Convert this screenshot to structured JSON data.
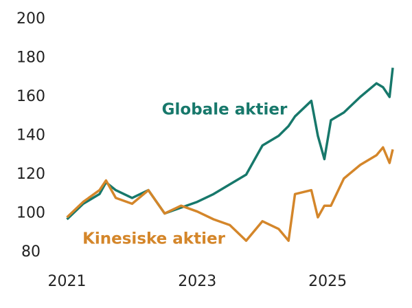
{
  "chart_data": {
    "type": "line",
    "x": [
      2021.0,
      2021.25,
      2021.5,
      2021.6,
      2021.75,
      2022.0,
      2022.25,
      2022.5,
      2022.75,
      2023.0,
      2023.25,
      2023.5,
      2023.75,
      2024.0,
      2024.25,
      2024.4,
      2024.5,
      2024.75,
      2024.85,
      2024.95,
      2025.05,
      2025.25,
      2025.5,
      2025.75,
      2025.85,
      2025.95,
      2026.0
    ],
    "series": [
      {
        "name": "Globale aktier",
        "color": "#17786b",
        "values": [
          97,
          105,
          110,
          116,
          112,
          108,
          112,
          100,
          103,
          106,
          110,
          115,
          120,
          135,
          140,
          145,
          150,
          158,
          140,
          128,
          148,
          152,
          160,
          167,
          165,
          160,
          175
        ]
      },
      {
        "name": "Kinesiske aktier",
        "color": "#d4862a",
        "values": [
          98,
          106,
          112,
          117,
          108,
          105,
          112,
          100,
          104,
          101,
          97,
          94,
          86,
          96,
          92,
          86,
          110,
          112,
          98,
          104,
          104,
          118,
          125,
          130,
          134,
          126,
          133
        ]
      }
    ],
    "xlim": [
      2020.5,
      2026.2
    ],
    "xticks": [
      {
        "value": 2021,
        "label": "2021"
      },
      {
        "value": 2023,
        "label": "2023"
      },
      {
        "value": 2025,
        "label": "2025"
      }
    ],
    "ylim": [
      80,
      200
    ],
    "yticks": [
      80,
      100,
      120,
      140,
      160,
      180,
      200
    ]
  }
}
